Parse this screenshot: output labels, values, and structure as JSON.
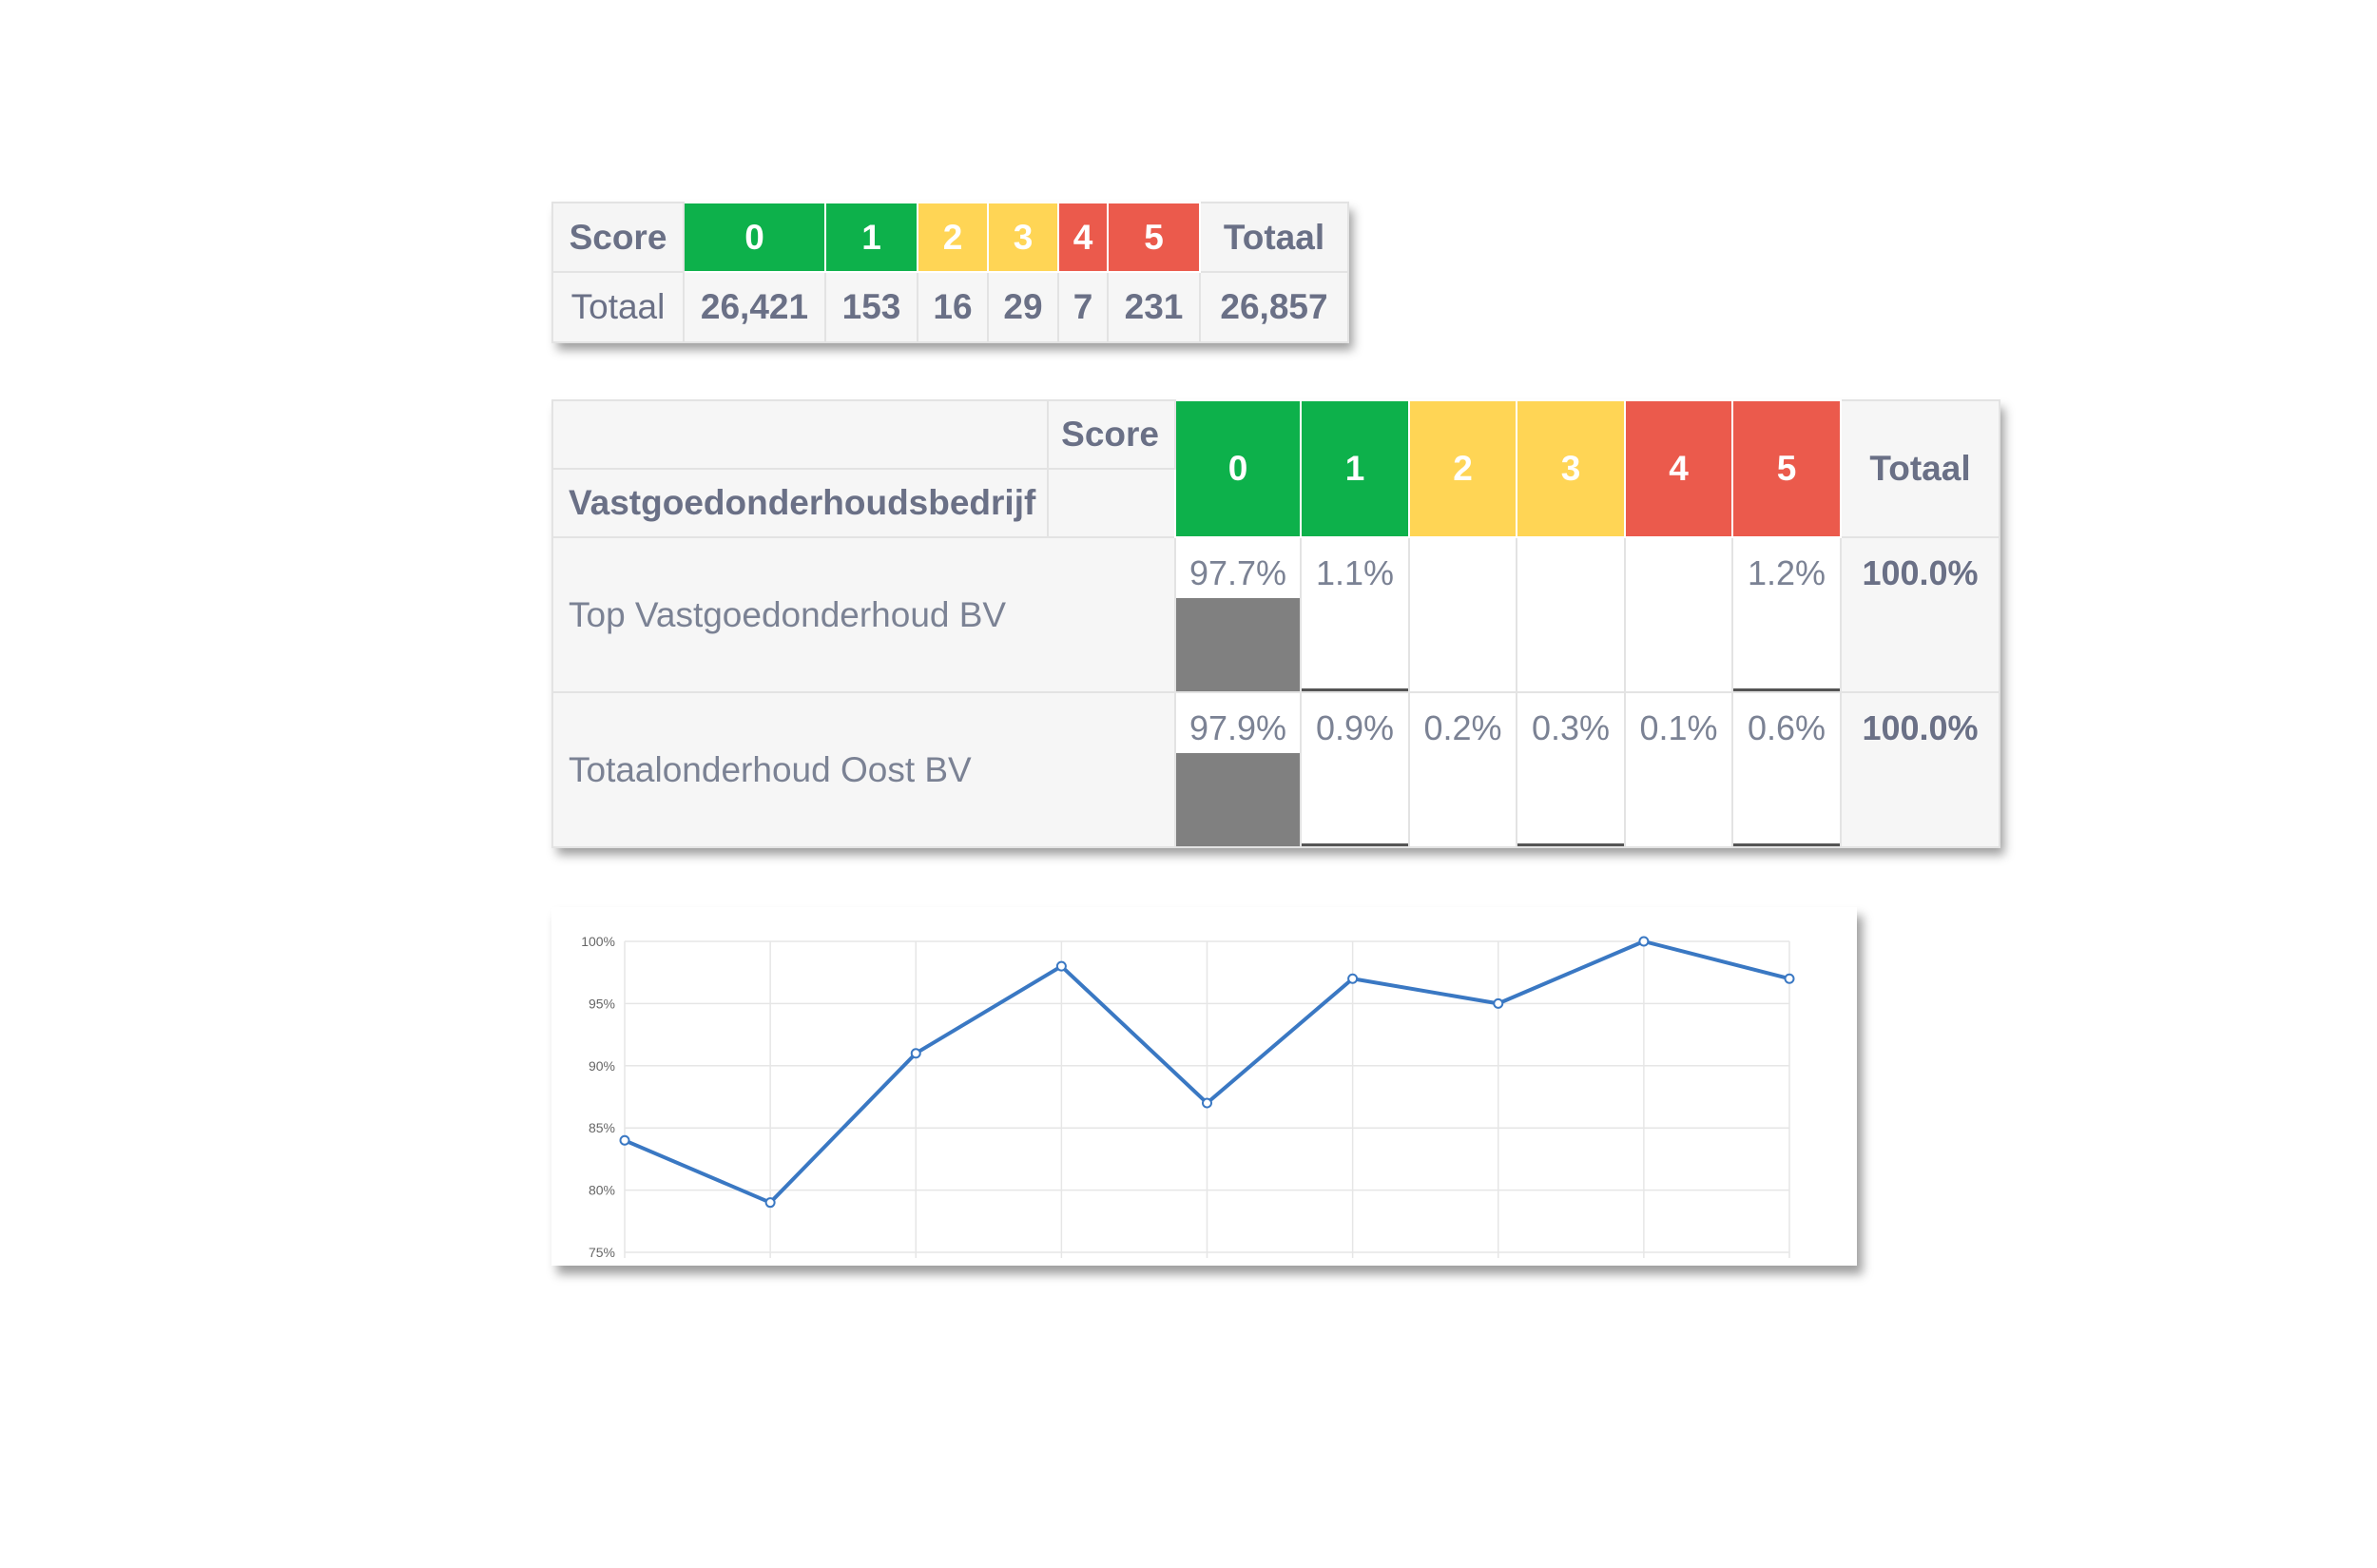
{
  "colors": {
    "score_0": "#0db14b",
    "score_1": "#0db14b",
    "score_2": "#ffd555",
    "score_3": "#ffd555",
    "score_4": "#eb5a4c",
    "score_5": "#eb5a4c",
    "bar": "#808080",
    "line": "#3a78c3"
  },
  "summary_table": {
    "score_header": "Score",
    "scores": [
      "0",
      "1",
      "2",
      "3",
      "4",
      "5"
    ],
    "total_header": "Totaal",
    "row_label": "Totaal",
    "counts": [
      "26,421",
      "153",
      "16",
      "29",
      "7",
      "231"
    ],
    "grand_total": "26,857"
  },
  "company_table": {
    "score_header": "Score",
    "company_header": "Vastgoedonderhoudsbedrijf",
    "scores": [
      "0",
      "1",
      "2",
      "3",
      "4",
      "5"
    ],
    "total_header": "Totaal",
    "rows": [
      {
        "name": "Top Vastgoedonderhoud BV",
        "cells": [
          "97.7%",
          "1.1%",
          "",
          "",
          "",
          "1.2%"
        ],
        "fractions": [
          0.977,
          0.011,
          0,
          0,
          0,
          0.012
        ],
        "total": "100.0%"
      },
      {
        "name": "Totaalonderhoud Oost BV",
        "cells": [
          "97.9%",
          "0.9%",
          "0.2%",
          "0.3%",
          "0.1%",
          "0.6%"
        ],
        "fractions": [
          0.979,
          0.009,
          0.002,
          0.003,
          0.001,
          0.006
        ],
        "total": "100.0%"
      }
    ]
  },
  "chart_data": {
    "type": "line",
    "x": [
      1,
      2,
      3,
      4,
      5,
      6,
      7,
      8,
      9
    ],
    "series": [
      {
        "values": [
          84,
          79,
          91,
          98,
          87,
          97,
          95,
          100,
          97
        ]
      }
    ],
    "ylim": [
      75,
      100
    ],
    "yticks": [
      "100%",
      "95%",
      "90%",
      "85%",
      "80%",
      "75%"
    ],
    "grid": true
  }
}
